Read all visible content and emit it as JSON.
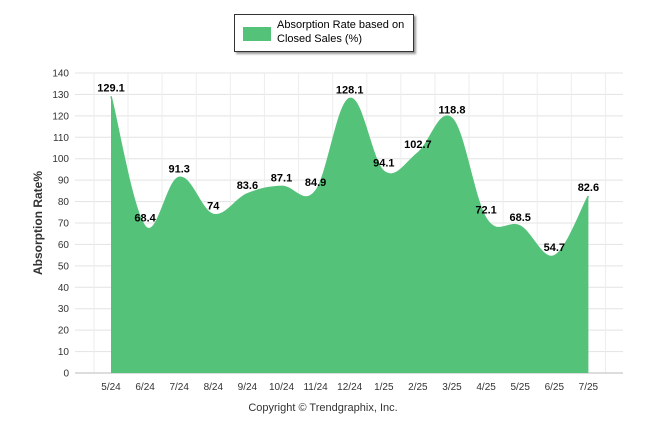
{
  "chart_data": {
    "type": "area",
    "categories": [
      "5/24",
      "6/24",
      "7/24",
      "8/24",
      "9/24",
      "10/24",
      "11/24",
      "12/24",
      "1/25",
      "2/25",
      "3/25",
      "4/25",
      "5/25",
      "6/25",
      "7/25"
    ],
    "series": [
      {
        "name": "Absorption Rate based on Closed Sales (%)",
        "values": [
          129.1,
          68.4,
          91.3,
          74,
          83.6,
          87.1,
          84.9,
          128.1,
          94.1,
          102.7,
          118.8,
          72.1,
          68.5,
          54.7,
          82.6
        ],
        "labels": [
          "129.1",
          "68.4",
          "91.3",
          "74",
          "83.6",
          "87.1",
          "84.9",
          "128.1",
          "94.1",
          "102.7",
          "118.8",
          "72.1",
          "68.5",
          "54.7",
          "82.6"
        ],
        "color": "#55c27a"
      }
    ],
    "ylabel": "Absorption Rate%",
    "ylim": [
      0,
      140
    ],
    "yticks": [
      0,
      10,
      20,
      30,
      40,
      50,
      60,
      70,
      80,
      90,
      100,
      110,
      120,
      130,
      140
    ],
    "grid": true,
    "legend": "top-center"
  },
  "legend": {
    "label": "Absorption Rate based on Closed Sales (%)"
  },
  "footer": {
    "copyright": "Copyright © Trendgraphix, Inc."
  }
}
